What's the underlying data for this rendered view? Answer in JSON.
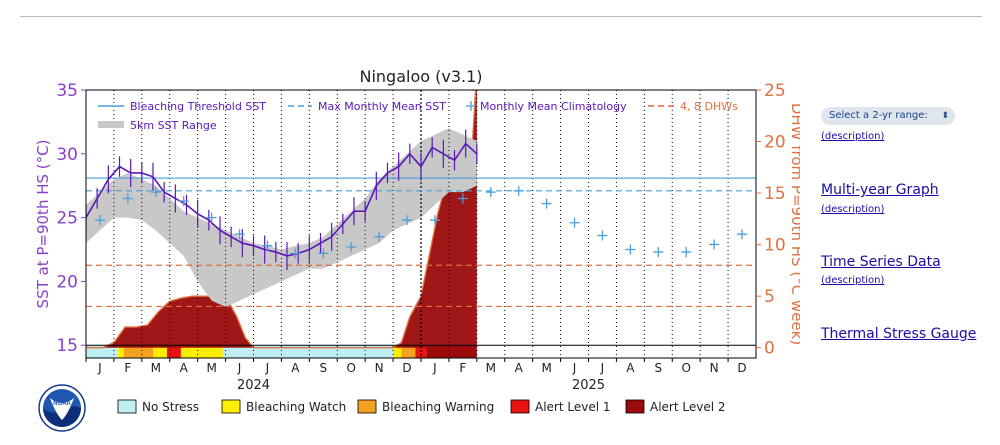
{
  "sidebar": {
    "range_select": "Select a 2-yr range:",
    "range_chevron": "⬍",
    "links": [
      {
        "label": "",
        "desc": "(description)"
      },
      {
        "label": "Multi-year Graph",
        "desc": "(description)"
      },
      {
        "label": "Time Series Data",
        "desc": "(description)"
      },
      {
        "label": "Thermal Stress Gauge",
        "desc": ""
      }
    ]
  },
  "logo": {
    "text": "NOAA"
  },
  "chart_data": {
    "type": "line",
    "title": "Ningaloo (v3.1)",
    "ylabel": "SST at P=90th HS (°C)",
    "y2label": "DHW from P=90th HS (°C week)",
    "ylim": [
      14,
      35
    ],
    "y2lim": [
      -1,
      25
    ],
    "yticks": [
      15,
      20,
      25,
      30,
      35
    ],
    "y2ticks": [
      0,
      5,
      10,
      15,
      20,
      25
    ],
    "months": [
      "J",
      "F",
      "M",
      "A",
      "M",
      "J",
      "J",
      "A",
      "S",
      "O",
      "N",
      "D",
      "J",
      "F",
      "M",
      "A",
      "M",
      "J",
      "J",
      "A",
      "S",
      "O",
      "N",
      "D"
    ],
    "years": [
      "2024",
      "2025"
    ],
    "legend": [
      {
        "label": "Bleaching Threshold SST",
        "color": "#4a9fdc",
        "style": "solid"
      },
      {
        "label": "Max Monthly Mean SST",
        "color": "#4a9fdc",
        "style": "dashed"
      },
      {
        "label": "Monthly Mean Climatology",
        "color": "#4a9fdc",
        "style": "plus"
      },
      {
        "label": "4, 8 DHWs",
        "color": "#e8643c",
        "style": "dashed"
      },
      {
        "label": "5km SST Range",
        "color": "#c8c8c8",
        "style": "band"
      }
    ],
    "bleaching_threshold": 28.1,
    "mmm": 27.1,
    "dhw_lines": [
      4,
      8
    ],
    "climatology": {
      "x": [
        0.5,
        1.5,
        2.5,
        3.5,
        4.5,
        5.5,
        6.5,
        7.5,
        8.5,
        9.5,
        10.5,
        11.5,
        12.5,
        13.5,
        14.5,
        15.5,
        16.5,
        17.5,
        18.5,
        19.5,
        20.5,
        21.5,
        22.5,
        23.5
      ],
      "y": [
        24.8,
        26.5,
        27.0,
        26.3,
        25.0,
        23.7,
        22.8,
        22.2,
        22.2,
        22.7,
        23.5,
        24.8,
        24.8,
        26.5,
        27.0,
        27.1,
        26.1,
        24.6,
        23.6,
        22.5,
        22.3,
        22.3,
        22.9,
        23.7
      ]
    },
    "sst_series": {
      "x": [
        0,
        0.4,
        0.8,
        1.2,
        1.6,
        2.0,
        2.4,
        2.8,
        3.2,
        3.6,
        4.0,
        4.4,
        4.8,
        5.2,
        5.6,
        6.0,
        6.4,
        6.8,
        7.2,
        7.6,
        8.0,
        8.4,
        8.8,
        9.2,
        9.6,
        10.0,
        10.4,
        10.8,
        11.2,
        11.6,
        12.0,
        12.4,
        12.8,
        13.2,
        13.6,
        14.0
      ],
      "y": [
        25.0,
        26.5,
        28.0,
        29.0,
        28.5,
        28.5,
        28.2,
        27.0,
        26.5,
        26.0,
        25.3,
        24.8,
        24.0,
        23.5,
        23.0,
        22.8,
        22.5,
        22.3,
        22.0,
        22.2,
        22.5,
        23.0,
        23.5,
        24.5,
        25.5,
        25.5,
        27.5,
        28.5,
        29.0,
        30.0,
        29.0,
        30.5,
        30.0,
        29.5,
        30.8,
        30.0
      ]
    },
    "sst_range": {
      "x": [
        0,
        0.5,
        1,
        1.5,
        2,
        2.5,
        3,
        3.5,
        4,
        4.5,
        5,
        5.5,
        6,
        6.5,
        7,
        7.5,
        8,
        8.5,
        9,
        9.5,
        10,
        10.5,
        11,
        11.5,
        12,
        12.5,
        13,
        13.5,
        14
      ],
      "low": [
        23.0,
        24.0,
        25.0,
        25.0,
        24.8,
        24.0,
        23.0,
        22.0,
        20.0,
        18.5,
        18.0,
        18.5,
        19.0,
        19.5,
        20.0,
        20.5,
        21.0,
        21.0,
        21.5,
        22.0,
        22.5,
        23.0,
        24.0,
        24.5,
        25.0,
        26.0,
        27.0,
        27.0,
        27.5
      ],
      "high": [
        26.0,
        27.0,
        28.0,
        28.5,
        28.0,
        27.5,
        26.5,
        25.5,
        25.0,
        24.5,
        24.0,
        23.5,
        23.0,
        22.8,
        22.5,
        22.8,
        23.0,
        23.5,
        24.5,
        25.5,
        26.5,
        28.0,
        29.0,
        30.0,
        31.0,
        31.5,
        32.0,
        31.5,
        31.0
      ]
    },
    "dhw_series": {
      "x": [
        0,
        0.6,
        1.0,
        1.4,
        1.8,
        2.2,
        2.6,
        3.0,
        3.4,
        3.8,
        4.2,
        4.6,
        5.0,
        5.4,
        5.7,
        6.0,
        11.0,
        11.3,
        11.6,
        12.0,
        12.3,
        12.6,
        12.9,
        13.2,
        13.5,
        13.8,
        14.0
      ],
      "y": [
        0,
        0,
        0.5,
        2,
        2,
        2.2,
        3.5,
        4.5,
        4.8,
        5,
        5,
        5,
        5,
        3,
        1,
        0,
        0,
        0.5,
        3,
        5,
        9,
        13,
        16,
        16,
        17,
        18,
        27
      ]
    },
    "alert_bar": {
      "segments": [
        {
          "start": 0,
          "end": 1.15,
          "level": "none"
        },
        {
          "start": 1.15,
          "end": 1.35,
          "level": "watch"
        },
        {
          "start": 1.35,
          "end": 2.4,
          "level": "warning"
        },
        {
          "start": 2.4,
          "end": 2.9,
          "level": "watch"
        },
        {
          "start": 2.9,
          "end": 3.4,
          "level": "alert1"
        },
        {
          "start": 3.4,
          "end": 4.9,
          "level": "watch"
        },
        {
          "start": 4.9,
          "end": 11.0,
          "level": "none"
        },
        {
          "start": 11.0,
          "end": 11.3,
          "level": "watch"
        },
        {
          "start": 11.3,
          "end": 11.8,
          "level": "warning"
        },
        {
          "start": 11.8,
          "end": 12.2,
          "level": "alert1"
        },
        {
          "start": 12.2,
          "end": 14.0,
          "level": "alert2"
        }
      ]
    },
    "stress_legend": [
      {
        "label": "No Stress",
        "color": "#bfeff2"
      },
      {
        "label": "Bleaching Watch",
        "color": "#ffee00"
      },
      {
        "label": "Bleaching Warning",
        "color": "#f3a221"
      },
      {
        "label": "Alert Level 1",
        "color": "#e8130f"
      },
      {
        "label": "Alert Level 2",
        "color": "#9b0b0b"
      }
    ],
    "colors": {
      "sst": "#5a18b8",
      "axis_left": "#8b3fc8",
      "axis_right": "#e0703f",
      "threshold": "#4a9fdc",
      "range": "#c8c8c8"
    }
  }
}
